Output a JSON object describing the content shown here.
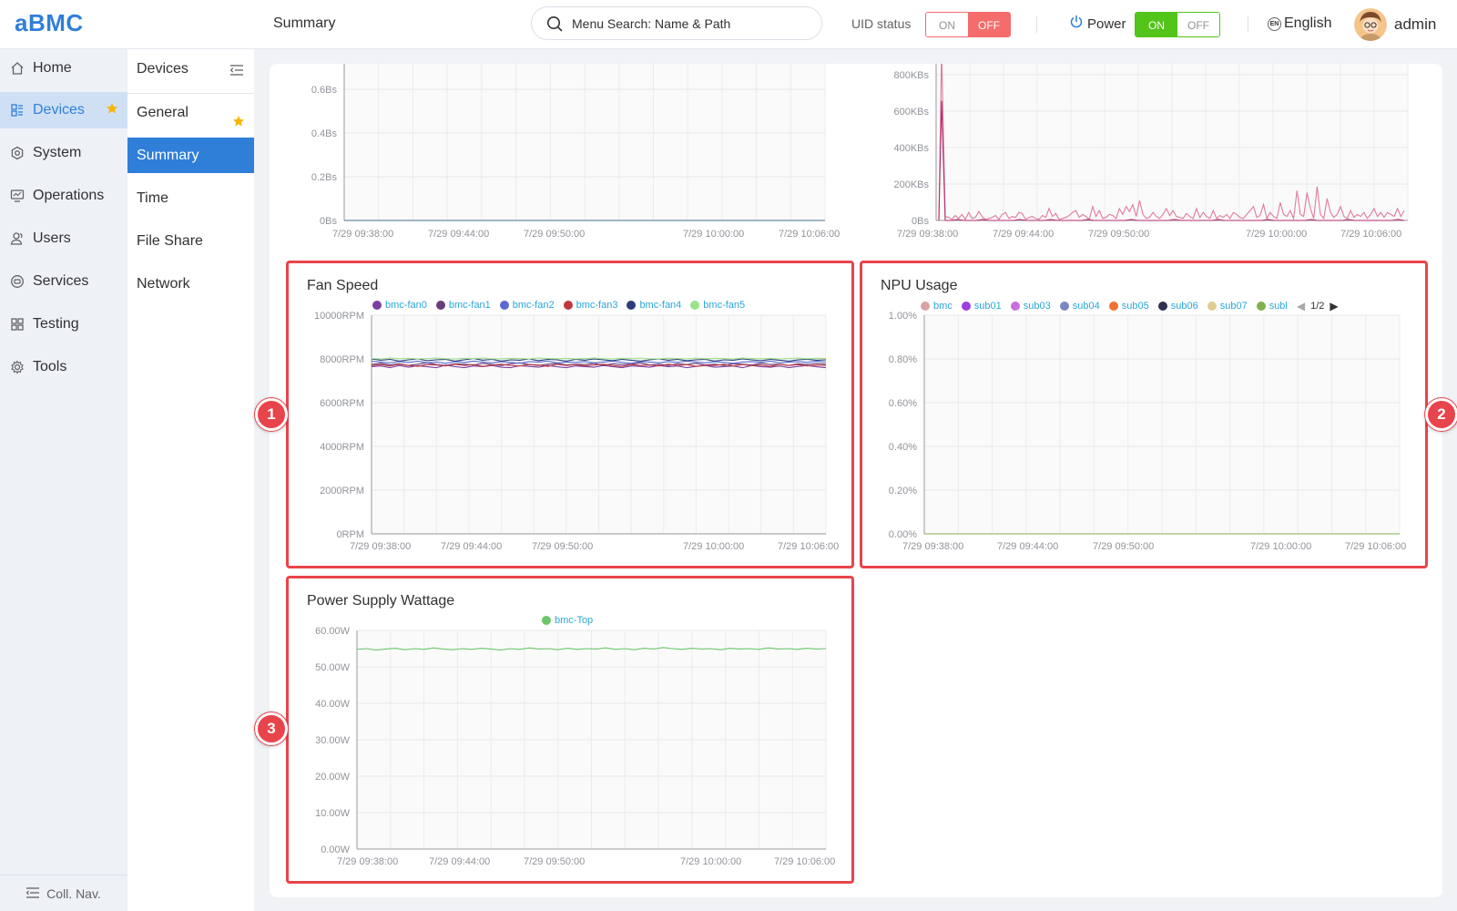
{
  "app": {
    "logo": "aBMC",
    "page_title": "Summary"
  },
  "header": {
    "search_placeholder": "Menu Search: Name & Path",
    "uid_label": "UID status",
    "uid_on": "ON",
    "uid_off": "OFF",
    "uid_state": "OFF",
    "power_label": "Power",
    "power_on": "ON",
    "power_off": "OFF",
    "power_state": "ON",
    "language": "English",
    "lang_badge": "EN",
    "user": "admin"
  },
  "sidebar": {
    "items": [
      {
        "label": "Home",
        "icon": "home-icon"
      },
      {
        "label": "Devices",
        "icon": "devices-icon",
        "active": true,
        "starred": true
      },
      {
        "label": "System",
        "icon": "system-icon"
      },
      {
        "label": "Operations",
        "icon": "operations-icon"
      },
      {
        "label": "Users",
        "icon": "users-icon"
      },
      {
        "label": "Services",
        "icon": "services-icon"
      },
      {
        "label": "Testing",
        "icon": "testing-icon"
      },
      {
        "label": "Tools",
        "icon": "tools-icon"
      }
    ],
    "collapse_label": "Coll. Nav."
  },
  "subnav": {
    "title": "Devices",
    "items": [
      {
        "label": "General",
        "starred": true
      },
      {
        "label": "Summary",
        "active": true
      },
      {
        "label": "Time"
      },
      {
        "label": "File Share"
      },
      {
        "label": "Network"
      }
    ]
  },
  "colors": {
    "accent": "#2f7fd8",
    "highlight": "#e8444b",
    "uid_off": "#f56c6c",
    "power_on": "#52c41a"
  },
  "badges": [
    "1",
    "2",
    "3"
  ],
  "chart_data": [
    {
      "id": "top-left",
      "type": "line",
      "title": "",
      "x_ticks": [
        "7/29 09:38:00",
        "7/29 09:44:00",
        "7/29 09:50:00",
        "7/29 10:00:00",
        "7/29 10:06:00"
      ],
      "y_ticks": [
        "0Bs",
        "0.2Bs",
        "0.4Bs",
        "0.6Bs"
      ],
      "ylim": [
        0,
        0.8
      ],
      "series": [
        {
          "color": "#4a6f8a",
          "values": [
            0,
            0,
            0,
            0,
            0
          ]
        }
      ]
    },
    {
      "id": "top-right",
      "type": "line",
      "title": "",
      "x_ticks": [
        "7/29 09:38:00",
        "7/29 09:44:00",
        "7/29 09:50:00",
        "7/29 10:00:00",
        "7/29 10:06:00"
      ],
      "y_ticks": [
        "0Bs",
        "200KBs",
        "400KBs",
        "600KBs",
        "800KBs"
      ],
      "ylim": [
        0,
        850
      ],
      "series": [
        {
          "color": "#e07aa0",
          "values": [
            850,
            20,
            15,
            5,
            25,
            10,
            30,
            5,
            40,
            10,
            15,
            45,
            20,
            5,
            10,
            15,
            25,
            5,
            30,
            40,
            10,
            20,
            15,
            40,
            35,
            5,
            15,
            20,
            10,
            5,
            25,
            15,
            60,
            20,
            35,
            5,
            10,
            15,
            25,
            40,
            50,
            15,
            30,
            20,
            5,
            70,
            20,
            50,
            10,
            15,
            30,
            25,
            10,
            60,
            30,
            70,
            45,
            80,
            20,
            100,
            30,
            10,
            15,
            40,
            20,
            10,
            30,
            60,
            25,
            50,
            20,
            15,
            10,
            35,
            20,
            10,
            60,
            15,
            40,
            20,
            10,
            50,
            10,
            25,
            15,
            30,
            10,
            40,
            30,
            15,
            10,
            30,
            50,
            70,
            15,
            25,
            80,
            10,
            40,
            20,
            10,
            90,
            30,
            20,
            50,
            10,
            150,
            30,
            20,
            140,
            60,
            10,
            170,
            30,
            10,
            110,
            40,
            15,
            30,
            70,
            20,
            10,
            50,
            15,
            30,
            20,
            40,
            10,
            30,
            60,
            20,
            40,
            15,
            40,
            30,
            20,
            60,
            20,
            50
          ]
        },
        {
          "color": "#b0306a",
          "values": [
            600,
            0,
            0,
            5,
            0,
            0,
            0,
            5,
            0,
            0,
            0,
            0,
            0,
            5,
            0,
            0,
            0,
            0,
            5,
            0,
            0,
            0,
            0,
            0,
            5,
            0,
            0,
            0,
            0,
            0,
            0,
            5,
            0,
            0,
            0,
            0,
            0,
            0,
            5,
            0,
            0,
            0,
            0,
            0,
            0,
            5,
            0,
            0,
            0,
            0,
            0,
            0,
            0,
            5,
            0,
            0,
            0,
            0,
            0,
            0,
            5,
            0,
            0,
            0,
            0,
            0,
            5,
            0,
            0,
            0,
            0,
            0,
            0,
            0,
            5,
            0
          ]
        }
      ]
    },
    {
      "id": "fan-speed",
      "type": "line",
      "title": "Fan Speed",
      "x_ticks": [
        "7/29 09:38:00",
        "7/29 09:44:00",
        "7/29 09:50:00",
        "7/29 10:00:00",
        "7/29 10:06:00"
      ],
      "y_ticks": [
        "0RPM",
        "2000RPM",
        "4000RPM",
        "6000RPM",
        "8000RPM",
        "10000RPM"
      ],
      "ylim": [
        0,
        10000
      ],
      "series": [
        {
          "name": "bmc-fan0",
          "color": "#7b3fa0",
          "base": 7650,
          "values": [
            7650,
            7680,
            7600,
            7700,
            7620,
            7690,
            7640,
            7600,
            7720,
            7650,
            7600,
            7680,
            7650,
            7700,
            7620,
            7600,
            7690,
            7660,
            7620,
            7700,
            7640,
            7600,
            7680,
            7650,
            7620,
            7700,
            7650,
            7600,
            7680,
            7660,
            7620,
            7700,
            7640,
            7680,
            7600,
            7660,
            7700,
            7620,
            7650,
            7680,
            7600,
            7700,
            7650,
            7620,
            7680,
            7600,
            7660,
            7700,
            7640,
            7600
          ]
        },
        {
          "name": "bmc-fan1",
          "color": "#6a3d7a",
          "base": 7750,
          "values": [
            7750,
            7800,
            7720,
            7780,
            7700,
            7760,
            7820,
            7740,
            7700,
            7780,
            7760,
            7720,
            7800,
            7740,
            7700,
            7780,
            7820,
            7740,
            7700,
            7760,
            7800,
            7720,
            7760,
            7740,
            7800,
            7700,
            7780,
            7740,
            7760,
            7820,
            7720,
            7760,
            7700,
            7780,
            7740,
            7800,
            7720,
            7760,
            7700,
            7780,
            7760,
            7720,
            7800,
            7740,
            7760,
            7700,
            7780,
            7740,
            7800,
            7760
          ]
        },
        {
          "name": "bmc-fan2",
          "color": "#5a6ad0",
          "base": 7850,
          "values": [
            7900,
            7860,
            7820,
            7880,
            7840,
            7900,
            7820,
            7860,
            7800,
            7880,
            7840,
            7900,
            7860,
            7820,
            7880,
            7840,
            7800,
            7880,
            7860,
            7900,
            7820,
            7860,
            7840,
            7880,
            7820,
            7860,
            7900,
            7840,
            7800,
            7880,
            7860,
            7820,
            7880,
            7840,
            7900,
            7860,
            7820,
            7880,
            7840,
            7800,
            7860,
            7880,
            7840,
            7900,
            7820,
            7860,
            7880,
            7840,
            7900,
            7860
          ]
        },
        {
          "name": "bmc-fan3",
          "color": "#c0393f",
          "base": 7700,
          "values": [
            7700,
            7740,
            7680,
            7760,
            7700,
            7660,
            7740,
            7720,
            7680,
            7760,
            7700,
            7740,
            7660,
            7720,
            7760,
            7700,
            7680,
            7740,
            7720,
            7660,
            7760,
            7700,
            7740,
            7680,
            7720,
            7760,
            7700,
            7660,
            7740,
            7700,
            7720,
            7680,
            7760,
            7700,
            7740,
            7660,
            7720,
            7700,
            7760,
            7680,
            7740,
            7700,
            7720,
            7660,
            7760,
            7700,
            7740,
            7680,
            7720,
            7700
          ]
        },
        {
          "name": "bmc-fan4",
          "color": "#2c3e7a",
          "base": 7950,
          "values": [
            8000,
            7940,
            7980,
            7900,
            7960,
            8000,
            7920,
            7960,
            7980,
            7900,
            7960,
            8020,
            7940,
            7980,
            7900,
            7960,
            7940,
            8000,
            7920,
            7980,
            7960,
            7900,
            7980,
            7940,
            8000,
            7960,
            7920,
            7980,
            7940,
            7900,
            7960,
            8000,
            7940,
            7980,
            7920,
            7960,
            7980,
            7900,
            7960,
            7940,
            8000,
            7960,
            7920,
            7980,
            7940,
            7900,
            7960,
            7980,
            7940,
            7960
          ]
        },
        {
          "name": "bmc-fan5",
          "color": "#9be28a",
          "base": 8000,
          "values": [
            8020,
            8000,
            8040,
            8010,
            8030,
            8000,
            8020,
            8040,
            8010,
            8000,
            8030,
            8020,
            8040,
            8000,
            8010,
            8030,
            8020,
            8000,
            8040,
            8020,
            8010,
            8030,
            8000,
            8020,
            8040,
            8010,
            8000,
            8030,
            8020,
            8040,
            8000,
            8010,
            8030,
            8020,
            8000,
            8040,
            8010,
            8030,
            8020,
            8000,
            8040,
            8020,
            8010,
            8030,
            8000,
            8020,
            8040,
            8010,
            8030,
            8020
          ]
        }
      ]
    },
    {
      "id": "npu-usage",
      "type": "line",
      "title": "NPU Usage",
      "x_ticks": [
        "7/29 09:38:00",
        "7/29 09:44:00",
        "7/29 09:50:00",
        "7/29 10:00:00",
        "7/29 10:06:00"
      ],
      "y_ticks": [
        "0.00%",
        "0.20%",
        "0.40%",
        "0.60%",
        "0.80%",
        "1.00%"
      ],
      "ylim": [
        0,
        1
      ],
      "legend_page": "1/2",
      "series": [
        {
          "name": "bmc",
          "color": "#d9a3a3",
          "values": [
            0,
            0
          ]
        },
        {
          "name": "sub01",
          "color": "#9b3fe0",
          "values": [
            0,
            0
          ]
        },
        {
          "name": "sub03",
          "color": "#c86ee0",
          "values": [
            0,
            0
          ]
        },
        {
          "name": "sub04",
          "color": "#7b86c0",
          "values": [
            0,
            0
          ]
        },
        {
          "name": "sub05",
          "color": "#f07030",
          "values": [
            0,
            0
          ]
        },
        {
          "name": "sub06",
          "color": "#303050",
          "values": [
            0,
            0
          ]
        },
        {
          "name": "sub07",
          "color": "#e0cc90",
          "values": [
            0,
            0
          ]
        },
        {
          "name": "subl",
          "color": "#80b050",
          "values": [
            0,
            0
          ]
        }
      ]
    },
    {
      "id": "power-supply",
      "type": "line",
      "title": "Power Supply Wattage",
      "x_ticks": [
        "7/29 09:38:00",
        "7/29 09:44:00",
        "7/29 09:50:00",
        "7/29 10:00:00",
        "7/29 10:06:00"
      ],
      "y_ticks": [
        "0.00W",
        "10.00W",
        "20.00W",
        "30.00W",
        "40.00W",
        "50.00W",
        "60.00W"
      ],
      "ylim": [
        0,
        60
      ],
      "series": [
        {
          "name": "bmc-Top",
          "color": "#6cc46c",
          "values": [
            54.8,
            55.0,
            54.6,
            54.9,
            55.1,
            54.7,
            55.0,
            54.8,
            55.2,
            54.9,
            54.7,
            55.0,
            54.8,
            55.1,
            54.9,
            54.6,
            55.0,
            54.8,
            55.2,
            54.9,
            55.0,
            54.7,
            55.1,
            54.8,
            55.0,
            54.9,
            55.2,
            54.8,
            55.0,
            54.7,
            55.1,
            54.9,
            55.3,
            55.0,
            54.8,
            55.1,
            54.9,
            55.0,
            54.7,
            55.1,
            54.9,
            55.0,
            54.8,
            55.2,
            54.9,
            55.0,
            54.8,
            55.1,
            54.9,
            55.0
          ]
        }
      ]
    }
  ]
}
